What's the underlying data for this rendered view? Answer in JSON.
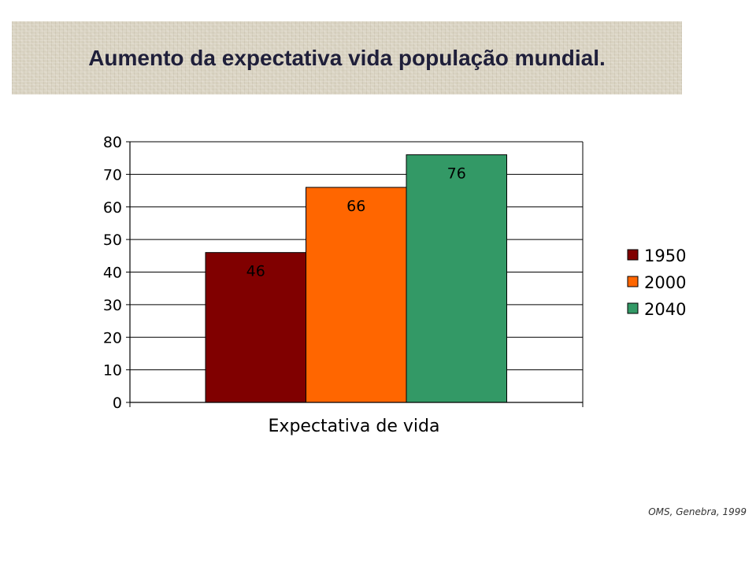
{
  "title": "Aumento da expectativa vida população mundial.",
  "source": "OMS, Genebra, 1999",
  "chart_data": {
    "type": "bar",
    "categories": [
      "Expectativa de vida"
    ],
    "series": [
      {
        "name": "1950",
        "values": [
          46
        ],
        "color": "#800000"
      },
      {
        "name": "2000",
        "values": [
          66
        ],
        "color": "#ff6600"
      },
      {
        "name": "2040",
        "values": [
          76
        ],
        "color": "#339966"
      }
    ],
    "data_labels": [
      "46",
      "66",
      "76"
    ],
    "xlabel": "Expectativa de vida",
    "ylabel": "",
    "ylim": [
      0,
      80
    ],
    "yticks": [
      0,
      10,
      20,
      30,
      40,
      50,
      60,
      70,
      80
    ],
    "grid": true,
    "legend_position": "right"
  }
}
